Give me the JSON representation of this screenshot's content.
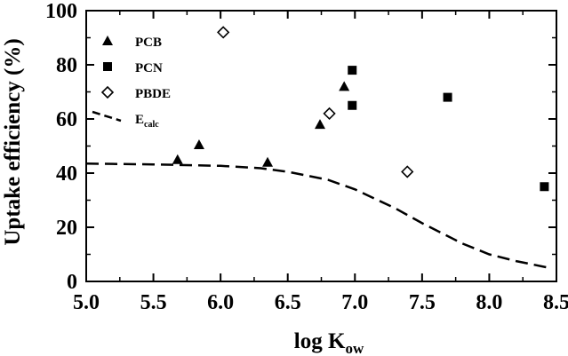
{
  "chart_data": {
    "type": "scatter",
    "xlabel": {
      "main": "log K",
      "sub": "ow"
    },
    "ylabel": "Uptake efficiency (%)",
    "xlim": [
      5.0,
      8.5
    ],
    "ylim": [
      0,
      100
    ],
    "xticks": [
      "5.0",
      "5.5",
      "6.0",
      "6.5",
      "7.0",
      "7.5",
      "8.0",
      "8.5"
    ],
    "yticks": [
      "0",
      "20",
      "40",
      "60",
      "80",
      "100"
    ],
    "grid": false,
    "legend_position": "top-left",
    "series": [
      {
        "name": "PCB",
        "marker": "triangle-filled",
        "points": [
          [
            5.68,
            45
          ],
          [
            5.84,
            50.5
          ],
          [
            6.35,
            44
          ],
          [
            6.74,
            58
          ],
          [
            6.92,
            72
          ]
        ]
      },
      {
        "name": "PCN",
        "marker": "square-filled",
        "points": [
          [
            6.98,
            78
          ],
          [
            6.98,
            65
          ],
          [
            7.69,
            68
          ],
          [
            8.41,
            35
          ]
        ]
      },
      {
        "name": "PBDE",
        "marker": "diamond-open",
        "points": [
          [
            6.02,
            92
          ],
          [
            6.81,
            62
          ],
          [
            7.39,
            40.5
          ]
        ]
      },
      {
        "name": "E",
        "name_sub": "calc",
        "marker": "dashed-line",
        "points": [
          [
            5.0,
            43.5
          ],
          [
            5.5,
            43.2
          ],
          [
            6.0,
            42.7
          ],
          [
            6.3,
            41.8
          ],
          [
            6.5,
            40.5
          ],
          [
            6.8,
            37.5
          ],
          [
            7.0,
            34
          ],
          [
            7.3,
            27
          ],
          [
            7.5,
            21.5
          ],
          [
            7.8,
            14
          ],
          [
            8.0,
            10
          ],
          [
            8.2,
            7.5
          ],
          [
            8.45,
            5
          ]
        ]
      }
    ]
  }
}
